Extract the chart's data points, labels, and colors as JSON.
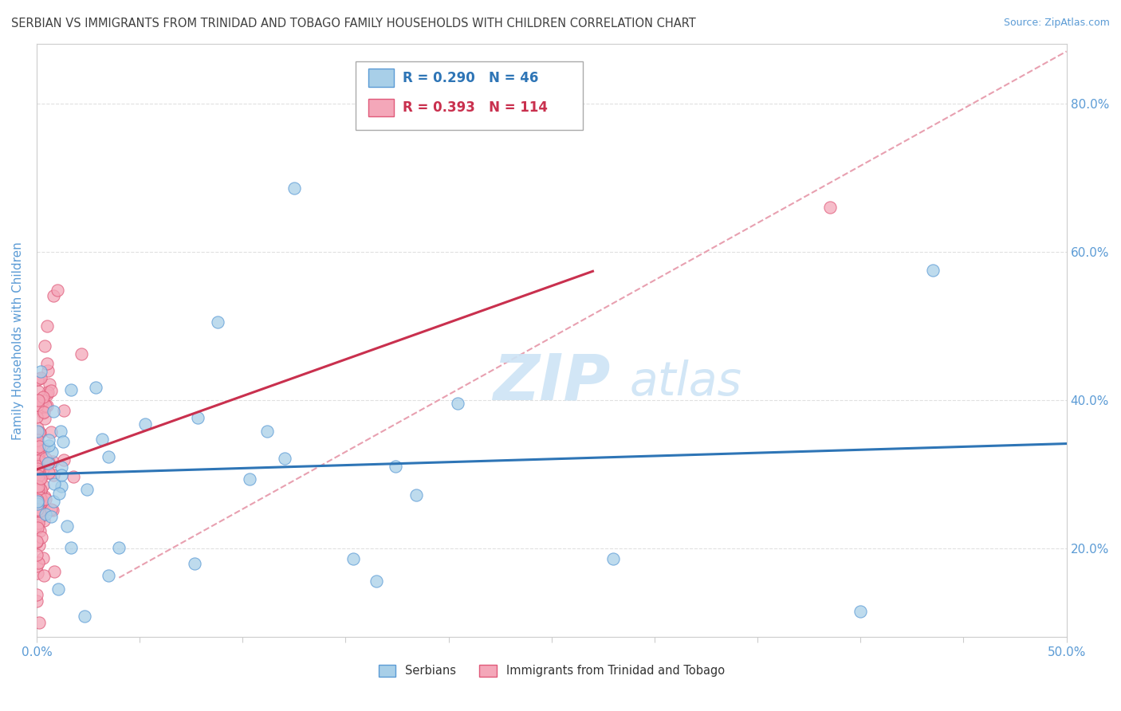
{
  "title": "SERBIAN VS IMMIGRANTS FROM TRINIDAD AND TOBAGO FAMILY HOUSEHOLDS WITH CHILDREN CORRELATION CHART",
  "source": "Source: ZipAtlas.com",
  "ylabel": "Family Households with Children",
  "yticks": [
    "20.0%",
    "40.0%",
    "60.0%",
    "80.0%"
  ],
  "ytick_vals": [
    0.2,
    0.4,
    0.6,
    0.8
  ],
  "xlim": [
    0.0,
    0.5
  ],
  "ylim": [
    0.08,
    0.88
  ],
  "legend_serbian_R": "R = 0.290",
  "legend_serbian_N": "N = 46",
  "legend_trinidadian_R": "R = 0.393",
  "legend_trinidadian_N": "N = 114",
  "serbian_color": "#a8cfe8",
  "serbian_edge_color": "#5b9bd5",
  "trinidadian_color": "#f4a7b9",
  "trinidadian_edge_color": "#e05a7a",
  "serbian_line_color": "#2e75b6",
  "trinidadian_line_color": "#c9304e",
  "dash_line_color": "#e8a0b0",
  "background_color": "#ffffff",
  "grid_color": "#e0e0e0",
  "watermark_color": "#cde4f5",
  "tick_color": "#5b9bd5",
  "title_color": "#404040",
  "source_color": "#5b9bd5"
}
